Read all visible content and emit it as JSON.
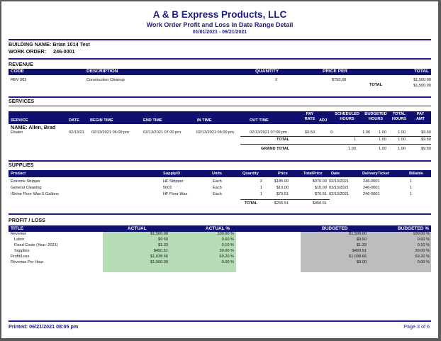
{
  "report": {
    "company": "A & B Express Products, LLC",
    "title": "Work Order Profit and Loss in Date Range Detail",
    "date_range": "01/01/2021 - 06/21/2021"
  },
  "building": {
    "label": "BUILDING NAME:",
    "value": "Brian 1014 Test"
  },
  "work_order": {
    "label": "WORK ORDER:",
    "value": "246-0001"
  },
  "revenue": {
    "section": "REVENUE",
    "headers": [
      "CODE",
      "DESCRIPTION",
      "QUANTITY",
      "PRICE PER",
      "TOTAL"
    ],
    "row": {
      "code": "REV 003",
      "description": "Construction Cleanup",
      "quantity": "2",
      "price_per": "$750.00",
      "total": "$1,500.00"
    },
    "total_label": "TOTAL",
    "total_value": "$1,500.00"
  },
  "services": {
    "section": "SERVICES",
    "headers": {
      "service": "SERVICE",
      "date": "DATE",
      "begin_time": "BEGIN TIME",
      "end_time": "END TIME",
      "in_time": "IN TIME",
      "out_time": "OUT TIME",
      "pay": "PAY",
      "rate": "RATE",
      "adj": "ADJ",
      "scheduled": "SCHEDULED",
      "budgeted": "BUDGETED",
      "total": "TOTAL",
      "hours": "HOURS",
      "amt": "AMT"
    },
    "employee": "NAME:  Allen, Brad",
    "row": {
      "service": "Floater",
      "date": "02/13/21",
      "begin_time": "02/13/2021 06:00 pm",
      "end_time": "02/13/2021 07:00 pm",
      "in_time": "02/13/2021 06:00 pm",
      "out_time": "02/13/2021 07:00 pm",
      "pay_rate": "$9.50",
      "adj": "0",
      "scheduled": "1.00",
      "budgeted": "1.00",
      "total_hours": "1.00",
      "pay_amt": "$9.50"
    },
    "total_label": "TOTAL",
    "totals": {
      "scheduled": "1",
      "budgeted": "1.00",
      "total_hours": "1.00",
      "pay_amt": "$9.50"
    },
    "grand_total_label": "GRAND TOTAL",
    "grand_totals": {
      "scheduled": "1.00",
      "budgeted": "1.00",
      "total_hours": "1.00",
      "pay_amt": "$9.50"
    }
  },
  "supplies": {
    "section": "SUPPLIES",
    "headers": {
      "product": "Product",
      "supply_id": "SupplyID",
      "units": "Units",
      "quantity": "Quantity",
      "price": "Price",
      "total_price": "TotalPrice",
      "date": "Date",
      "delivery_ticket": "DeliveryTicket",
      "billable": "Billable"
    },
    "rows": [
      {
        "product": "Extreme Stripper",
        "supply_id": "HF Stripper",
        "units": "Each",
        "quantity": "2",
        "price": "$185.00",
        "total_price": "$370.00",
        "date": "02/13/2021",
        "delivery_ticket": "246-0001",
        "billable": "1"
      },
      {
        "product": "General Cleaning",
        "supply_id": "5001",
        "units": "Each",
        "quantity": "1",
        "price": "$10.00",
        "total_price": "$10.00",
        "date": "02/13/2021",
        "delivery_ticket": "246-0001",
        "billable": "1"
      },
      {
        "product": "IShine Floor Wax 5 Gallons",
        "supply_id": "HF Floor Wax",
        "units": "Each",
        "quantity": "1",
        "price": "$70.51",
        "total_price": "$70.51",
        "date": "02/13/2021",
        "delivery_ticket": "246-0001",
        "billable": "1"
      }
    ],
    "total_label": "TOTAL",
    "total_price": "$265.51",
    "total_total_price": "$450.51"
  },
  "profit_loss": {
    "section": "PROFIT / LOSS",
    "headers": {
      "title": "TITLE",
      "actual": "ACTUAL",
      "actual_pct": "ACTUAL %",
      "budgeted": "BUDGETED",
      "budgeted_pct": "BUDGETED %"
    },
    "rows": [
      {
        "title": "Revenue",
        "actual": "$1,500.00",
        "actual_pct": "100.00 %",
        "budgeted": "$1,500.00",
        "budgeted_pct": "100.00 %"
      },
      {
        "title": "Labor",
        "actual": "$9.50",
        "actual_pct": "0.60 %",
        "budgeted": "$9.50",
        "budgeted_pct": "0.60 %"
      },
      {
        "title": "Fixed Costs (Year: 2021)",
        "actual": "$1.33",
        "actual_pct": "0.10 %",
        "budgeted": "$1.33",
        "budgeted_pct": "0.10 %"
      },
      {
        "title": "Supplies",
        "actual": "$450.51",
        "actual_pct": "30.00 %",
        "budgeted": "$450.51",
        "budgeted_pct": "30.00 %"
      },
      {
        "title": "Profit/Loss",
        "actual": "$1,038.66",
        "actual_pct": "69.20 %",
        "budgeted": "$1,038.66",
        "budgeted_pct": "69.20 %"
      },
      {
        "title": "Revenue Per Hour",
        "actual": "$1,500.00",
        "actual_pct": "0.00 %",
        "budgeted": "$0.00",
        "budgeted_pct": "0.00 %"
      }
    ]
  },
  "footer": {
    "printed": "Printed:  06/21/2021 08:05 pm",
    "page": "Page 3 of 6"
  }
}
